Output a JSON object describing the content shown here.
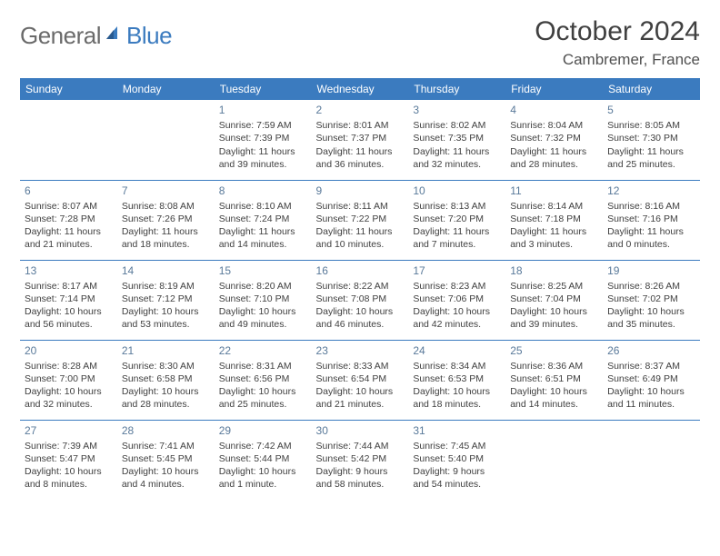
{
  "logo": {
    "part1": "General",
    "part2": "Blue"
  },
  "title": "October 2024",
  "location": "Cambremer, France",
  "colors": {
    "header_bg": "#3b7bbf",
    "header_text": "#ffffff",
    "daynum": "#5a7a9a",
    "body_text": "#404040",
    "divider": "#3b7bbf",
    "background": "#ffffff"
  },
  "day_labels": [
    "Sunday",
    "Monday",
    "Tuesday",
    "Wednesday",
    "Thursday",
    "Friday",
    "Saturday"
  ],
  "weeks": [
    [
      null,
      null,
      {
        "n": "1",
        "sr": "7:59 AM",
        "ss": "7:39 PM",
        "dl": "11 hours and 39 minutes."
      },
      {
        "n": "2",
        "sr": "8:01 AM",
        "ss": "7:37 PM",
        "dl": "11 hours and 36 minutes."
      },
      {
        "n": "3",
        "sr": "8:02 AM",
        "ss": "7:35 PM",
        "dl": "11 hours and 32 minutes."
      },
      {
        "n": "4",
        "sr": "8:04 AM",
        "ss": "7:32 PM",
        "dl": "11 hours and 28 minutes."
      },
      {
        "n": "5",
        "sr": "8:05 AM",
        "ss": "7:30 PM",
        "dl": "11 hours and 25 minutes."
      }
    ],
    [
      {
        "n": "6",
        "sr": "8:07 AM",
        "ss": "7:28 PM",
        "dl": "11 hours and 21 minutes."
      },
      {
        "n": "7",
        "sr": "8:08 AM",
        "ss": "7:26 PM",
        "dl": "11 hours and 18 minutes."
      },
      {
        "n": "8",
        "sr": "8:10 AM",
        "ss": "7:24 PM",
        "dl": "11 hours and 14 minutes."
      },
      {
        "n": "9",
        "sr": "8:11 AM",
        "ss": "7:22 PM",
        "dl": "11 hours and 10 minutes."
      },
      {
        "n": "10",
        "sr": "8:13 AM",
        "ss": "7:20 PM",
        "dl": "11 hours and 7 minutes."
      },
      {
        "n": "11",
        "sr": "8:14 AM",
        "ss": "7:18 PM",
        "dl": "11 hours and 3 minutes."
      },
      {
        "n": "12",
        "sr": "8:16 AM",
        "ss": "7:16 PM",
        "dl": "11 hours and 0 minutes."
      }
    ],
    [
      {
        "n": "13",
        "sr": "8:17 AM",
        "ss": "7:14 PM",
        "dl": "10 hours and 56 minutes."
      },
      {
        "n": "14",
        "sr": "8:19 AM",
        "ss": "7:12 PM",
        "dl": "10 hours and 53 minutes."
      },
      {
        "n": "15",
        "sr": "8:20 AM",
        "ss": "7:10 PM",
        "dl": "10 hours and 49 minutes."
      },
      {
        "n": "16",
        "sr": "8:22 AM",
        "ss": "7:08 PM",
        "dl": "10 hours and 46 minutes."
      },
      {
        "n": "17",
        "sr": "8:23 AM",
        "ss": "7:06 PM",
        "dl": "10 hours and 42 minutes."
      },
      {
        "n": "18",
        "sr": "8:25 AM",
        "ss": "7:04 PM",
        "dl": "10 hours and 39 minutes."
      },
      {
        "n": "19",
        "sr": "8:26 AM",
        "ss": "7:02 PM",
        "dl": "10 hours and 35 minutes."
      }
    ],
    [
      {
        "n": "20",
        "sr": "8:28 AM",
        "ss": "7:00 PM",
        "dl": "10 hours and 32 minutes."
      },
      {
        "n": "21",
        "sr": "8:30 AM",
        "ss": "6:58 PM",
        "dl": "10 hours and 28 minutes."
      },
      {
        "n": "22",
        "sr": "8:31 AM",
        "ss": "6:56 PM",
        "dl": "10 hours and 25 minutes."
      },
      {
        "n": "23",
        "sr": "8:33 AM",
        "ss": "6:54 PM",
        "dl": "10 hours and 21 minutes."
      },
      {
        "n": "24",
        "sr": "8:34 AM",
        "ss": "6:53 PM",
        "dl": "10 hours and 18 minutes."
      },
      {
        "n": "25",
        "sr": "8:36 AM",
        "ss": "6:51 PM",
        "dl": "10 hours and 14 minutes."
      },
      {
        "n": "26",
        "sr": "8:37 AM",
        "ss": "6:49 PM",
        "dl": "10 hours and 11 minutes."
      }
    ],
    [
      {
        "n": "27",
        "sr": "7:39 AM",
        "ss": "5:47 PM",
        "dl": "10 hours and 8 minutes."
      },
      {
        "n": "28",
        "sr": "7:41 AM",
        "ss": "5:45 PM",
        "dl": "10 hours and 4 minutes."
      },
      {
        "n": "29",
        "sr": "7:42 AM",
        "ss": "5:44 PM",
        "dl": "10 hours and 1 minute."
      },
      {
        "n": "30",
        "sr": "7:44 AM",
        "ss": "5:42 PM",
        "dl": "9 hours and 58 minutes."
      },
      {
        "n": "31",
        "sr": "7:45 AM",
        "ss": "5:40 PM",
        "dl": "9 hours and 54 minutes."
      },
      null,
      null
    ]
  ],
  "labels": {
    "sunrise": "Sunrise:",
    "sunset": "Sunset:",
    "daylight": "Daylight:"
  }
}
